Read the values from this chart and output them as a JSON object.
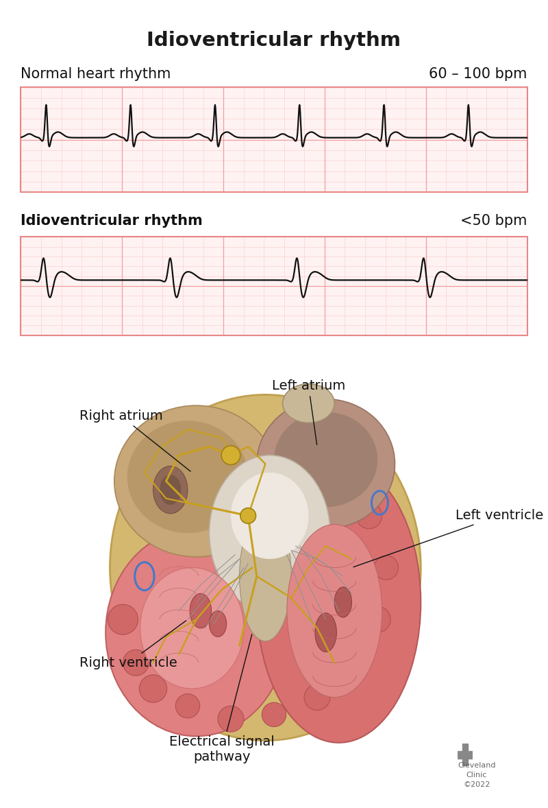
{
  "title": "Idioventricular rhythm",
  "title_fontsize": 21,
  "title_fontweight": "bold",
  "bg_color": "#ffffff",
  "ecg_bg": "#fff2f2",
  "ecg_grid_major": "#f0a0a0",
  "ecg_grid_minor": "#facaca",
  "ecg_line_color": "#111111",
  "ecg_border_color": "#e88888",
  "normal_label": "Normal heart rhythm",
  "normal_bpm": "60 – 100 bpm",
  "idio_label": "Idioventricular rhythm",
  "idio_bpm": "<50 bpm",
  "label_fontsize": 15,
  "bpm_fontsize": 15,
  "heart_label_fontsize": 14,
  "cleveland_text": "Cleveland\nClinic\n©2022"
}
